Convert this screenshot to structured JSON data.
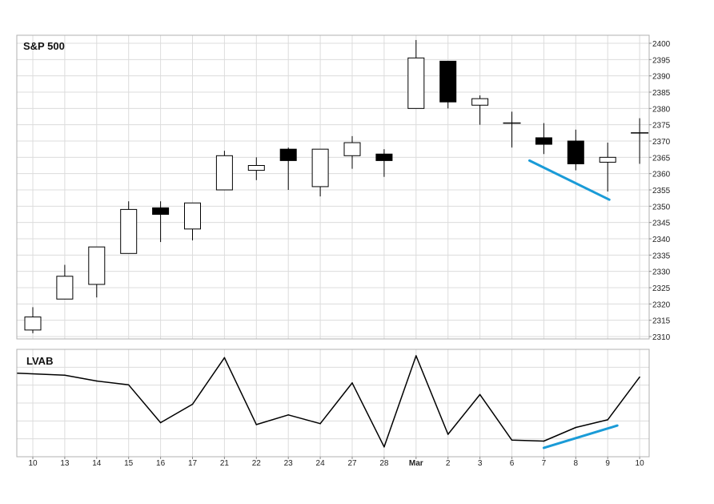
{
  "chart_data": [
    {
      "type": "candlestick",
      "title": "S&P 500",
      "ylim": [
        2310,
        2400
      ],
      "yticks": [
        2310,
        2315,
        2320,
        2325,
        2330,
        2335,
        2340,
        2345,
        2350,
        2355,
        2360,
        2365,
        2370,
        2375,
        2380,
        2385,
        2390,
        2395,
        2400
      ],
      "y_axis_side": "right",
      "grid": true,
      "categories": [
        "10",
        "13",
        "14",
        "15",
        "16",
        "17",
        "21",
        "22",
        "23",
        "24",
        "27",
        "28",
        "Mar",
        "2",
        "3",
        "6",
        "7",
        "8",
        "9",
        "10"
      ],
      "candles": [
        {
          "open": 2312,
          "high": 2319,
          "low": 2311,
          "close": 2316
        },
        {
          "open": 2321.5,
          "high": 2332,
          "low": 2321.5,
          "close": 2328.5
        },
        {
          "open": 2326,
          "high": 2337.5,
          "low": 2322,
          "close": 2337.5
        },
        {
          "open": 2335.5,
          "high": 2351.5,
          "low": 2335.5,
          "close": 2349
        },
        {
          "open": 2349.5,
          "high": 2351.5,
          "low": 2339,
          "close": 2347.5
        },
        {
          "open": 2343,
          "high": 2351,
          "low": 2339.5,
          "close": 2351
        },
        {
          "open": 2355,
          "high": 2367,
          "low": 2355,
          "close": 2365.5
        },
        {
          "open": 2361,
          "high": 2365,
          "low": 2358,
          "close": 2362.5
        },
        {
          "open": 2367.5,
          "high": 2368,
          "low": 2355,
          "close": 2364
        },
        {
          "open": 2356,
          "high": 2367.5,
          "low": 2353,
          "close": 2367.5
        },
        {
          "open": 2365.5,
          "high": 2371.5,
          "low": 2361.5,
          "close": 2369.5
        },
        {
          "open": 2366,
          "high": 2367.5,
          "low": 2359,
          "close": 2364
        },
        {
          "open": 2380,
          "high": 2401,
          "low": 2380,
          "close": 2395.5
        },
        {
          "open": 2394.5,
          "high": 2394.5,
          "low": 2380,
          "close": 2382
        },
        {
          "open": 2381,
          "high": 2384,
          "low": 2375,
          "close": 2383
        },
        {
          "open": 2375.5,
          "high": 2379,
          "low": 2368,
          "close": 2375.5
        },
        {
          "open": 2371,
          "high": 2375.5,
          "low": 2366,
          "close": 2369
        },
        {
          "open": 2370,
          "high": 2373.5,
          "low": 2361,
          "close": 2363
        },
        {
          "open": 2363.5,
          "high": 2369.5,
          "low": 2354.5,
          "close": 2365
        },
        {
          "open": 2372.5,
          "high": 2377,
          "low": 2363,
          "close": 2372.5
        }
      ],
      "trendline": {
        "color": "#1a9bd7",
        "from": {
          "x": "6",
          "offset": 0.55,
          "y": 2364
        },
        "to": {
          "x": "9",
          "offset": 0.05,
          "y": 2352
        }
      }
    },
    {
      "type": "line",
      "title": "LVAB",
      "categories": [
        "10",
        "13",
        "14",
        "15",
        "16",
        "17",
        "21",
        "22",
        "23",
        "24",
        "27",
        "28",
        "Mar",
        "2",
        "3",
        "6",
        "7",
        "8",
        "9",
        "10"
      ],
      "ylim": [
        0,
        100
      ],
      "values": [
        82,
        80,
        74,
        70,
        31,
        50,
        98,
        29,
        39,
        30,
        72,
        6,
        100,
        19,
        60,
        13,
        12,
        26,
        34,
        78
      ],
      "trendline": {
        "color": "#1a9bd7",
        "from": {
          "x": "7",
          "y": 5
        },
        "to": {
          "x": "9",
          "y": 28
        }
      }
    }
  ],
  "colors": {
    "up_fill": "#ffffff",
    "down_fill": "#000000",
    "line": "#000000",
    "grid": "#dcdcdc",
    "frame": "#b0b0b0",
    "accent": "#1a9bd7"
  }
}
